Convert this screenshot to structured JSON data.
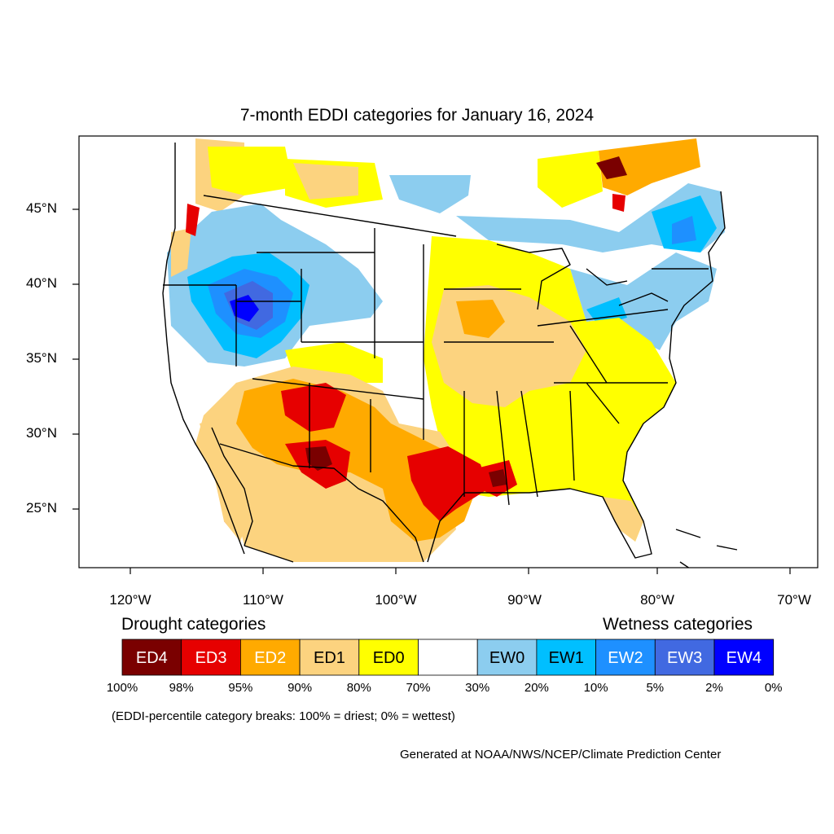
{
  "title": "7-month EDDI categories for January 16, 2024",
  "lat_ticks": [
    "45°N",
    "40°N",
    "35°N",
    "30°N",
    "25°N"
  ],
  "lon_ticks": [
    "120°W",
    "110°W",
    "100°W",
    "90°W",
    "80°W",
    "70°W"
  ],
  "legend": {
    "drought_header": "Drought categories",
    "wetness_header": "Wetness categories",
    "boxes": [
      {
        "label": "ED4",
        "color": "#7a0000",
        "text_color": "#ffffff"
      },
      {
        "label": "ED3",
        "color": "#e60000",
        "text_color": "#ffffff"
      },
      {
        "label": "ED2",
        "color": "#ffaa00",
        "text_color": "#ffffff"
      },
      {
        "label": "ED1",
        "color": "#fcd37f",
        "text_color": "#000000"
      },
      {
        "label": "ED0",
        "color": "#ffff00",
        "text_color": "#000000"
      },
      {
        "label": "",
        "color": "#ffffff",
        "text_color": "#000000"
      },
      {
        "label": "EW0",
        "color": "#8ccdef",
        "text_color": "#000000"
      },
      {
        "label": "EW1",
        "color": "#00bfff",
        "text_color": "#000000"
      },
      {
        "label": "EW2",
        "color": "#1e90ff",
        "text_color": "#ffffff"
      },
      {
        "label": "EW3",
        "color": "#4169e1",
        "text_color": "#ffffff"
      },
      {
        "label": "EW4",
        "color": "#0000ff",
        "text_color": "#ffffff"
      }
    ],
    "breaks": [
      "100%",
      "98%",
      "95%",
      "90%",
      "80%",
      "70%",
      "30%",
      "20%",
      "10%",
      "5%",
      "2%",
      "0%"
    ]
  },
  "note": "(EDDI-percentile category breaks: 100% = driest; 0% = wettest)",
  "credit": "Generated at NOAA/NWS/NCEP/Climate Prediction Center"
}
